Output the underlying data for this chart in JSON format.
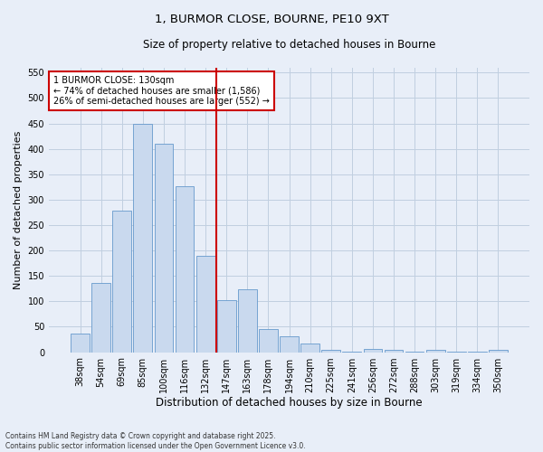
{
  "title_line1": "1, BURMOR CLOSE, BOURNE, PE10 9XT",
  "title_line2": "Size of property relative to detached houses in Bourne",
  "xlabel": "Distribution of detached houses by size in Bourne",
  "ylabel": "Number of detached properties",
  "categories": [
    "38sqm",
    "54sqm",
    "69sqm",
    "85sqm",
    "100sqm",
    "116sqm",
    "132sqm",
    "147sqm",
    "163sqm",
    "178sqm",
    "194sqm",
    "210sqm",
    "225sqm",
    "241sqm",
    "256sqm",
    "272sqm",
    "288sqm",
    "303sqm",
    "319sqm",
    "334sqm",
    "350sqm"
  ],
  "values": [
    36,
    137,
    278,
    450,
    410,
    327,
    190,
    103,
    124,
    46,
    31,
    17,
    5,
    1,
    7,
    4,
    1,
    4,
    1,
    1,
    4
  ],
  "bar_color": "#c9d9ee",
  "bar_edge_color": "#6699cc",
  "grid_color": "#c0cfe0",
  "background_color": "#e8eef8",
  "vline_color": "#cc0000",
  "vline_pos": 6.5,
  "annotation_text": "1 BURMOR CLOSE: 130sqm\n← 74% of detached houses are smaller (1,586)\n26% of semi-detached houses are larger (552) →",
  "annotation_box_facecolor": "#ffffff",
  "annotation_box_edgecolor": "#cc0000",
  "footer_text": "Contains HM Land Registry data © Crown copyright and database right 2025.\nContains public sector information licensed under the Open Government Licence v3.0.",
  "ylim": [
    0,
    560
  ],
  "yticks": [
    0,
    50,
    100,
    150,
    200,
    250,
    300,
    350,
    400,
    450,
    500,
    550
  ],
  "title_fontsize": 9.5,
  "subtitle_fontsize": 8.5,
  "tick_fontsize": 7,
  "ylabel_fontsize": 8,
  "xlabel_fontsize": 8.5,
  "annotation_fontsize": 7,
  "footer_fontsize": 5.5
}
